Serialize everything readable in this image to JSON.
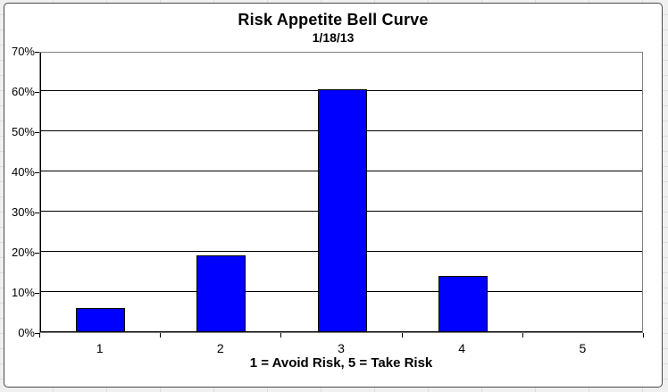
{
  "chart_data": {
    "type": "bar",
    "title": "Risk Appetite Bell Curve",
    "subtitle": "1/18/13",
    "categories": [
      "1",
      "2",
      "3",
      "4",
      "5"
    ],
    "values": [
      6,
      19,
      60.5,
      14,
      0
    ],
    "xlabel": "1 = Avoid Risk, 5 = Take Risk",
    "ylabel": "",
    "ylim": [
      0,
      70
    ],
    "ytick_step": 10,
    "ytick_labels": [
      "0%",
      "10%",
      "20%",
      "30%",
      "40%",
      "50%",
      "60%",
      "70%"
    ],
    "legend": "none",
    "grid": "horizontal",
    "colors": {
      "bar_fill": "#0000ff",
      "bar_border": "#000000",
      "gridline": "#000000",
      "plot_border": "#808080",
      "axis": "#000000",
      "chart_background": "#ffffff",
      "chart_border": "#4a4a4a",
      "sheet_background": "#f0f0f0",
      "text": "#000000"
    }
  }
}
